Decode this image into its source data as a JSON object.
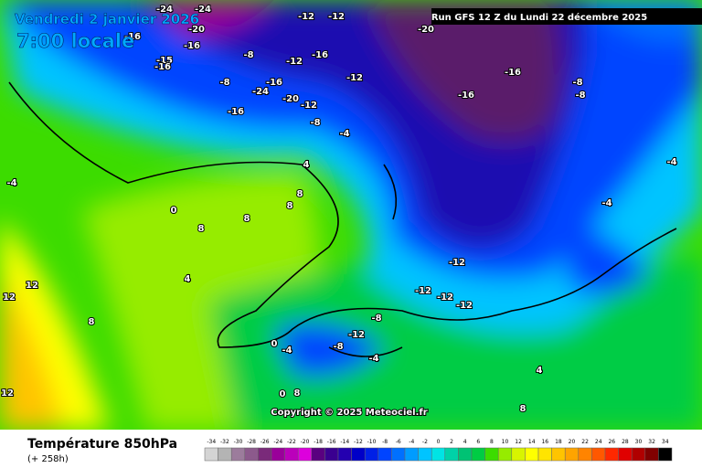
{
  "header": {
    "date": "Vendredi 2 janvier 2026",
    "time": "7:00 locale",
    "run": "Run GFS 12 Z du Lundi 22 décembre 2025",
    "copyright": "Copyright © 2025 Meteociel.fr"
  },
  "legend": {
    "title": "Température 850hPa",
    "lead": "(+ 258h)",
    "values": [
      -34,
      -32,
      -30,
      -28,
      -26,
      -24,
      -22,
      -20,
      -18,
      -16,
      -14,
      -12,
      -10,
      -8,
      -6,
      -4,
      -2,
      0,
      2,
      4,
      6,
      8,
      10,
      12,
      14,
      16,
      18,
      20,
      22,
      24,
      26,
      28,
      30,
      32,
      34
    ],
    "colors": [
      "#d4d4d4",
      "#b4b4b4",
      "#9c7c9c",
      "#8c5a8c",
      "#7a2a7a",
      "#9a009a",
      "#bb00bb",
      "#dd00dd",
      "#5a0080",
      "#3a0090",
      "#2400b0",
      "#0000c8",
      "#0020e6",
      "#0044ff",
      "#0070ff",
      "#009cff",
      "#00c4ff",
      "#00e4e4",
      "#00d2a8",
      "#00c274",
      "#00cc44",
      "#3cdc00",
      "#96ec00",
      "#d8f400",
      "#ffff00",
      "#ffe400",
      "#ffc400",
      "#ffa400",
      "#ff8400",
      "#ff5800",
      "#ff2800",
      "#e00000",
      "#b00000",
      "#800000",
      "#000000"
    ]
  },
  "map_labels": [
    -24,
    -24,
    -16,
    -20,
    -16,
    -15,
    -16,
    -8,
    -12,
    -12,
    -16,
    -12,
    -8,
    -24,
    -16,
    -20,
    -16,
    -12,
    -8,
    -12,
    -4,
    -16,
    -16,
    -20,
    -8,
    -8,
    -4,
    -4,
    4,
    8,
    8,
    8,
    8,
    4,
    12,
    12,
    8,
    0,
    -4,
    -12,
    -12,
    -12,
    -12,
    -8,
    -12,
    -8,
    -4,
    0,
    -4,
    4,
    8,
    12,
    8,
    0
  ]
}
